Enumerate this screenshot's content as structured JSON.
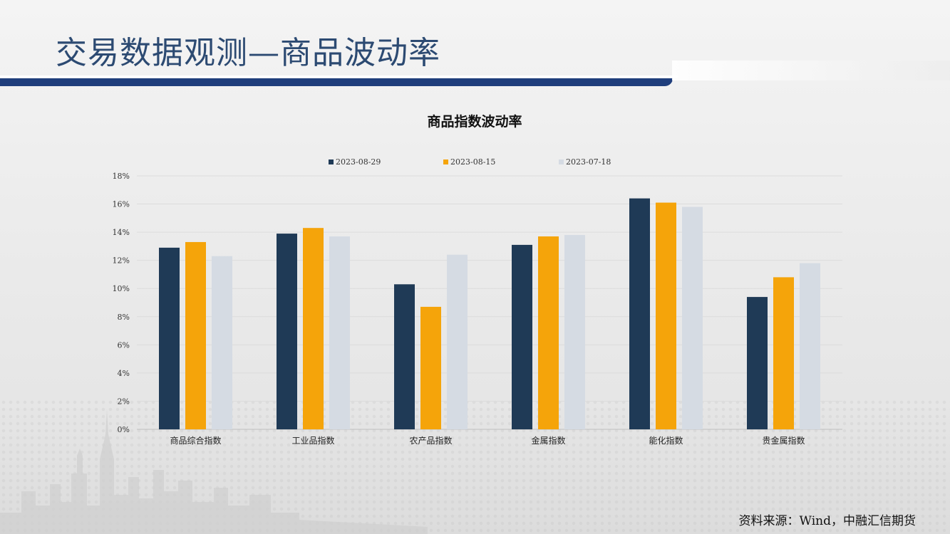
{
  "slide": {
    "title": "交易数据观测—商品波动率",
    "source": "资料来源：Wind，中融汇信期货"
  },
  "colors": {
    "accent": "#1f3e7c",
    "title_text": "#2c4a72"
  },
  "chart_data": {
    "type": "bar",
    "title": "商品指数波动率",
    "categories": [
      "商品综合指数",
      "工业品指数",
      "农产品指数",
      "金属指数",
      "能化指数",
      "贵金属指数"
    ],
    "series": [
      {
        "name": "2023-08-29",
        "color": "#1f3a56",
        "values": [
          12.9,
          13.9,
          10.3,
          13.1,
          16.4,
          9.4
        ]
      },
      {
        "name": "2023-08-15",
        "color": "#f5a40a",
        "values": [
          13.3,
          14.3,
          8.7,
          13.7,
          16.1,
          10.8
        ]
      },
      {
        "name": "2023-07-18",
        "color": "#d5dbe3",
        "values": [
          12.3,
          13.7,
          12.4,
          13.8,
          15.8,
          11.8
        ]
      }
    ],
    "yticks": [
      "0%",
      "2%",
      "4%",
      "6%",
      "8%",
      "10%",
      "12%",
      "14%",
      "16%",
      "18%"
    ],
    "ylim": [
      0,
      18
    ],
    "grid": true,
    "legend_position": "top"
  }
}
